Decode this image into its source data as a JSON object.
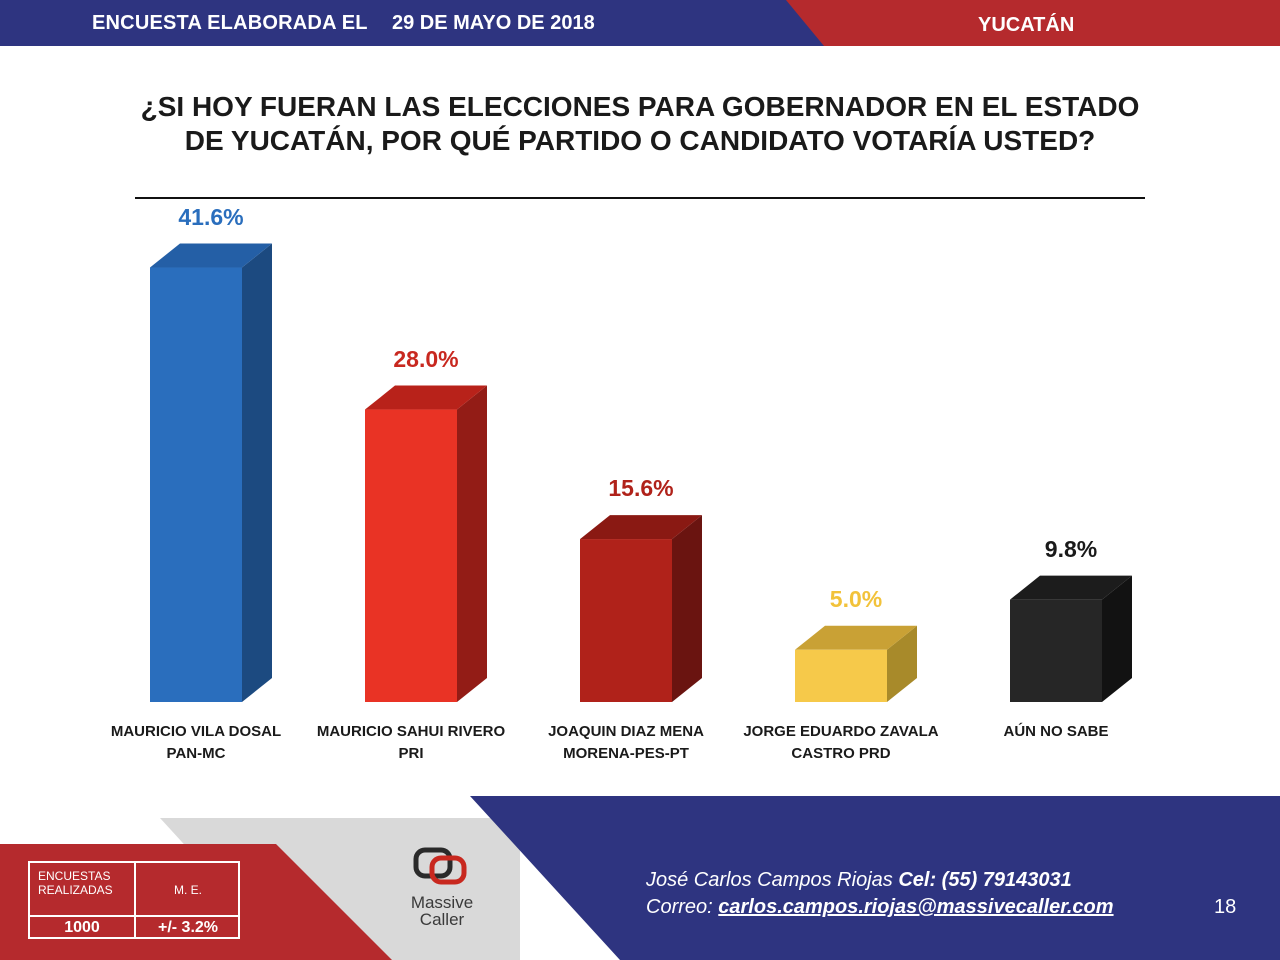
{
  "header": {
    "title": "ENCUESTA ELABORADA EL",
    "date": "29 DE MAYO DE 2018",
    "state": "YUCATÁN"
  },
  "question": {
    "line1": "¿SI HOY FUERAN LAS ELECCIONES PARA GOBERNADOR EN EL ESTADO",
    "line2": "DE YUCATÁN, POR QUÉ PARTIDO O CANDIDATO VOTARÍA USTED?"
  },
  "chart_data": {
    "type": "bar",
    "title": "¿SI HOY FUERAN LAS ELECCIONES PARA GOBERNADOR EN EL ESTADO DE YUCATÁN, POR QUÉ PARTIDO O CANDIDATO VOTARÍA USTED?",
    "xlabel": "",
    "ylabel": "",
    "ylim": [
      0,
      45
    ],
    "grid": false,
    "unit": "%",
    "categories": [
      [
        "MAURICIO VILA DOSAL",
        "PAN-MC"
      ],
      [
        "MAURICIO SAHUI RIVERO",
        "PRI"
      ],
      [
        "JOAQUIN DIAZ MENA",
        "MORENA-PES-PT"
      ],
      [
        "JORGE EDUARDO ZAVALA",
        "CASTRO PRD"
      ],
      [
        "AÚN NO SABE"
      ]
    ],
    "values": [
      41.6,
      28.0,
      15.6,
      5.0,
      9.8
    ],
    "value_labels": [
      "41.6%",
      "28.0%",
      "15.6%",
      "5.0%",
      "9.8%"
    ],
    "colors": [
      {
        "front": "#2a6ebd",
        "side": "#1c4a80",
        "top": "#245fa6",
        "label": "#2a6ebd"
      },
      {
        "front": "#e93325",
        "side": "#931c16",
        "top": "#b8221a",
        "label": "#c8281f"
      },
      {
        "front": "#b0221a",
        "side": "#6a1410",
        "top": "#8a1913",
        "label": "#b0221a"
      },
      {
        "front": "#f6c94a",
        "side": "#a88a2a",
        "top": "#c9a135",
        "label": "#f2c23a"
      },
      {
        "front": "#262626",
        "side": "#121212",
        "top": "#1c1c1c",
        "label": "#1a1a1a"
      }
    ]
  },
  "footer": {
    "stats_label_top": "ENCUESTAS",
    "stats_label_bottom": "REALIZADAS",
    "me_label": "M. E.",
    "count": "1000",
    "margin": "+/- 3.2%",
    "logo_word1": "Massive",
    "logo_word2": "Caller",
    "contact_name": "José Carlos Campos Riojas",
    "contact_cel": "Cel: (55) 79143031",
    "contact_mail_label": "Correo:",
    "contact_mail": "carlos.campos.riojas@massivecaller.com",
    "page_number": "18"
  },
  "theme": {
    "blue": "#2e3480",
    "red": "#b52a2d",
    "grey": "#d9d9d9"
  }
}
